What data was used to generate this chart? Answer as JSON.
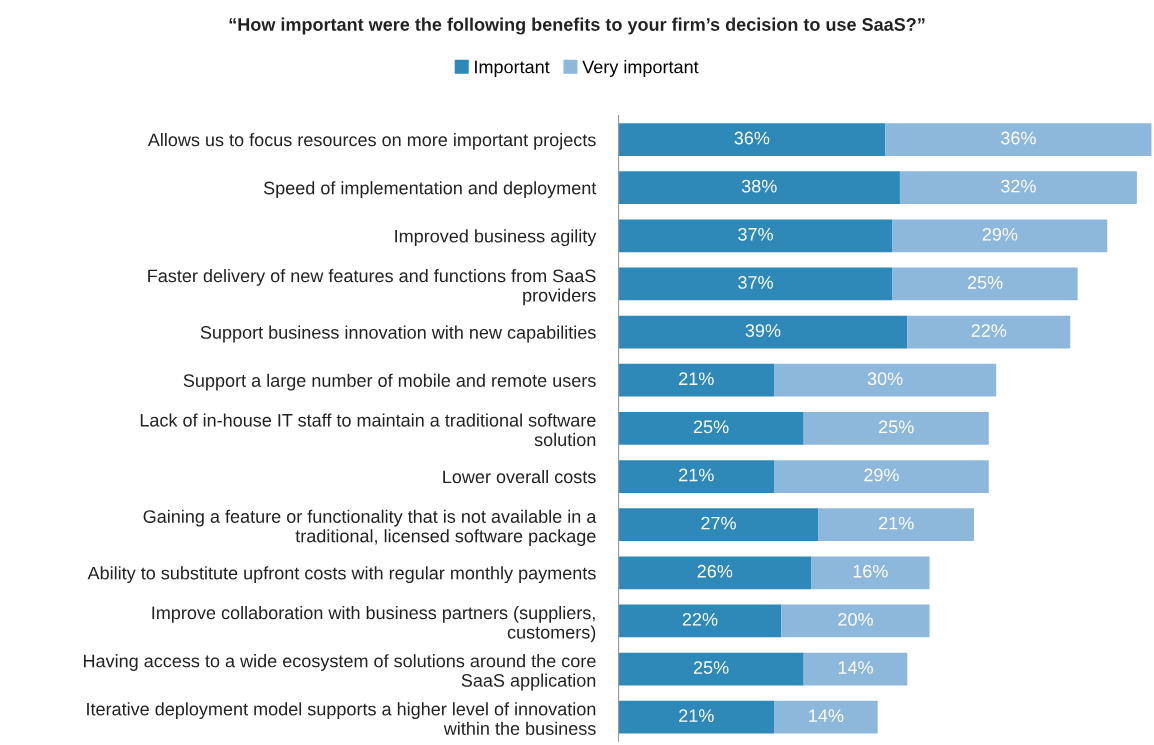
{
  "chart_data": {
    "type": "bar",
    "orientation": "horizontal",
    "stacked": true,
    "data_labels": true,
    "legend": "top",
    "grid": false,
    "title": "“How important were the following benefits to your firm’s decision to use SaaS?”",
    "categories": [
      "Allows us to focus resources on more important projects",
      "Speed of implementation and deployment",
      "Improved business agility",
      "Faster delivery of new features and functions from SaaS\nproviders",
      "Support business innovation with new capabilities",
      "Support a large number of mobile and remote users",
      "Lack of in-house IT staff to maintain a traditional software\nsolution",
      "Lower overall costs",
      "Gaining a feature or functionality that is not available in a\ntraditional, licensed software package",
      "Ability to substitute upfront costs with regular monthly payments",
      "Improve collaboration with business partners (suppliers,\ncustomers)",
      "Having access to a wide ecosystem of solutions around the core\nSaaS application",
      "Iterative deployment model supports a higher level of innovation\nwithin the business"
    ],
    "series": [
      {
        "name": "Important",
        "color": "#2e88b8",
        "values": [
          36,
          38,
          37,
          37,
          39,
          21,
          25,
          21,
          27,
          26,
          22,
          25,
          21
        ],
        "value_labels": [
          "36%",
          "38%",
          "37%",
          "37%",
          "39%",
          "21%",
          "25%",
          "21%",
          "27%",
          "26%",
          "22%",
          "25%",
          "21%"
        ]
      },
      {
        "name": "Very important",
        "color": "#8db8db",
        "values": [
          36,
          32,
          29,
          25,
          22,
          30,
          25,
          29,
          21,
          16,
          20,
          14,
          14
        ],
        "value_labels": [
          "36%",
          "32%",
          "29%",
          "25%",
          "22%",
          "30%",
          "25%",
          "29%",
          "21%",
          "16%",
          "20%",
          "14%",
          "14%"
        ]
      }
    ]
  }
}
